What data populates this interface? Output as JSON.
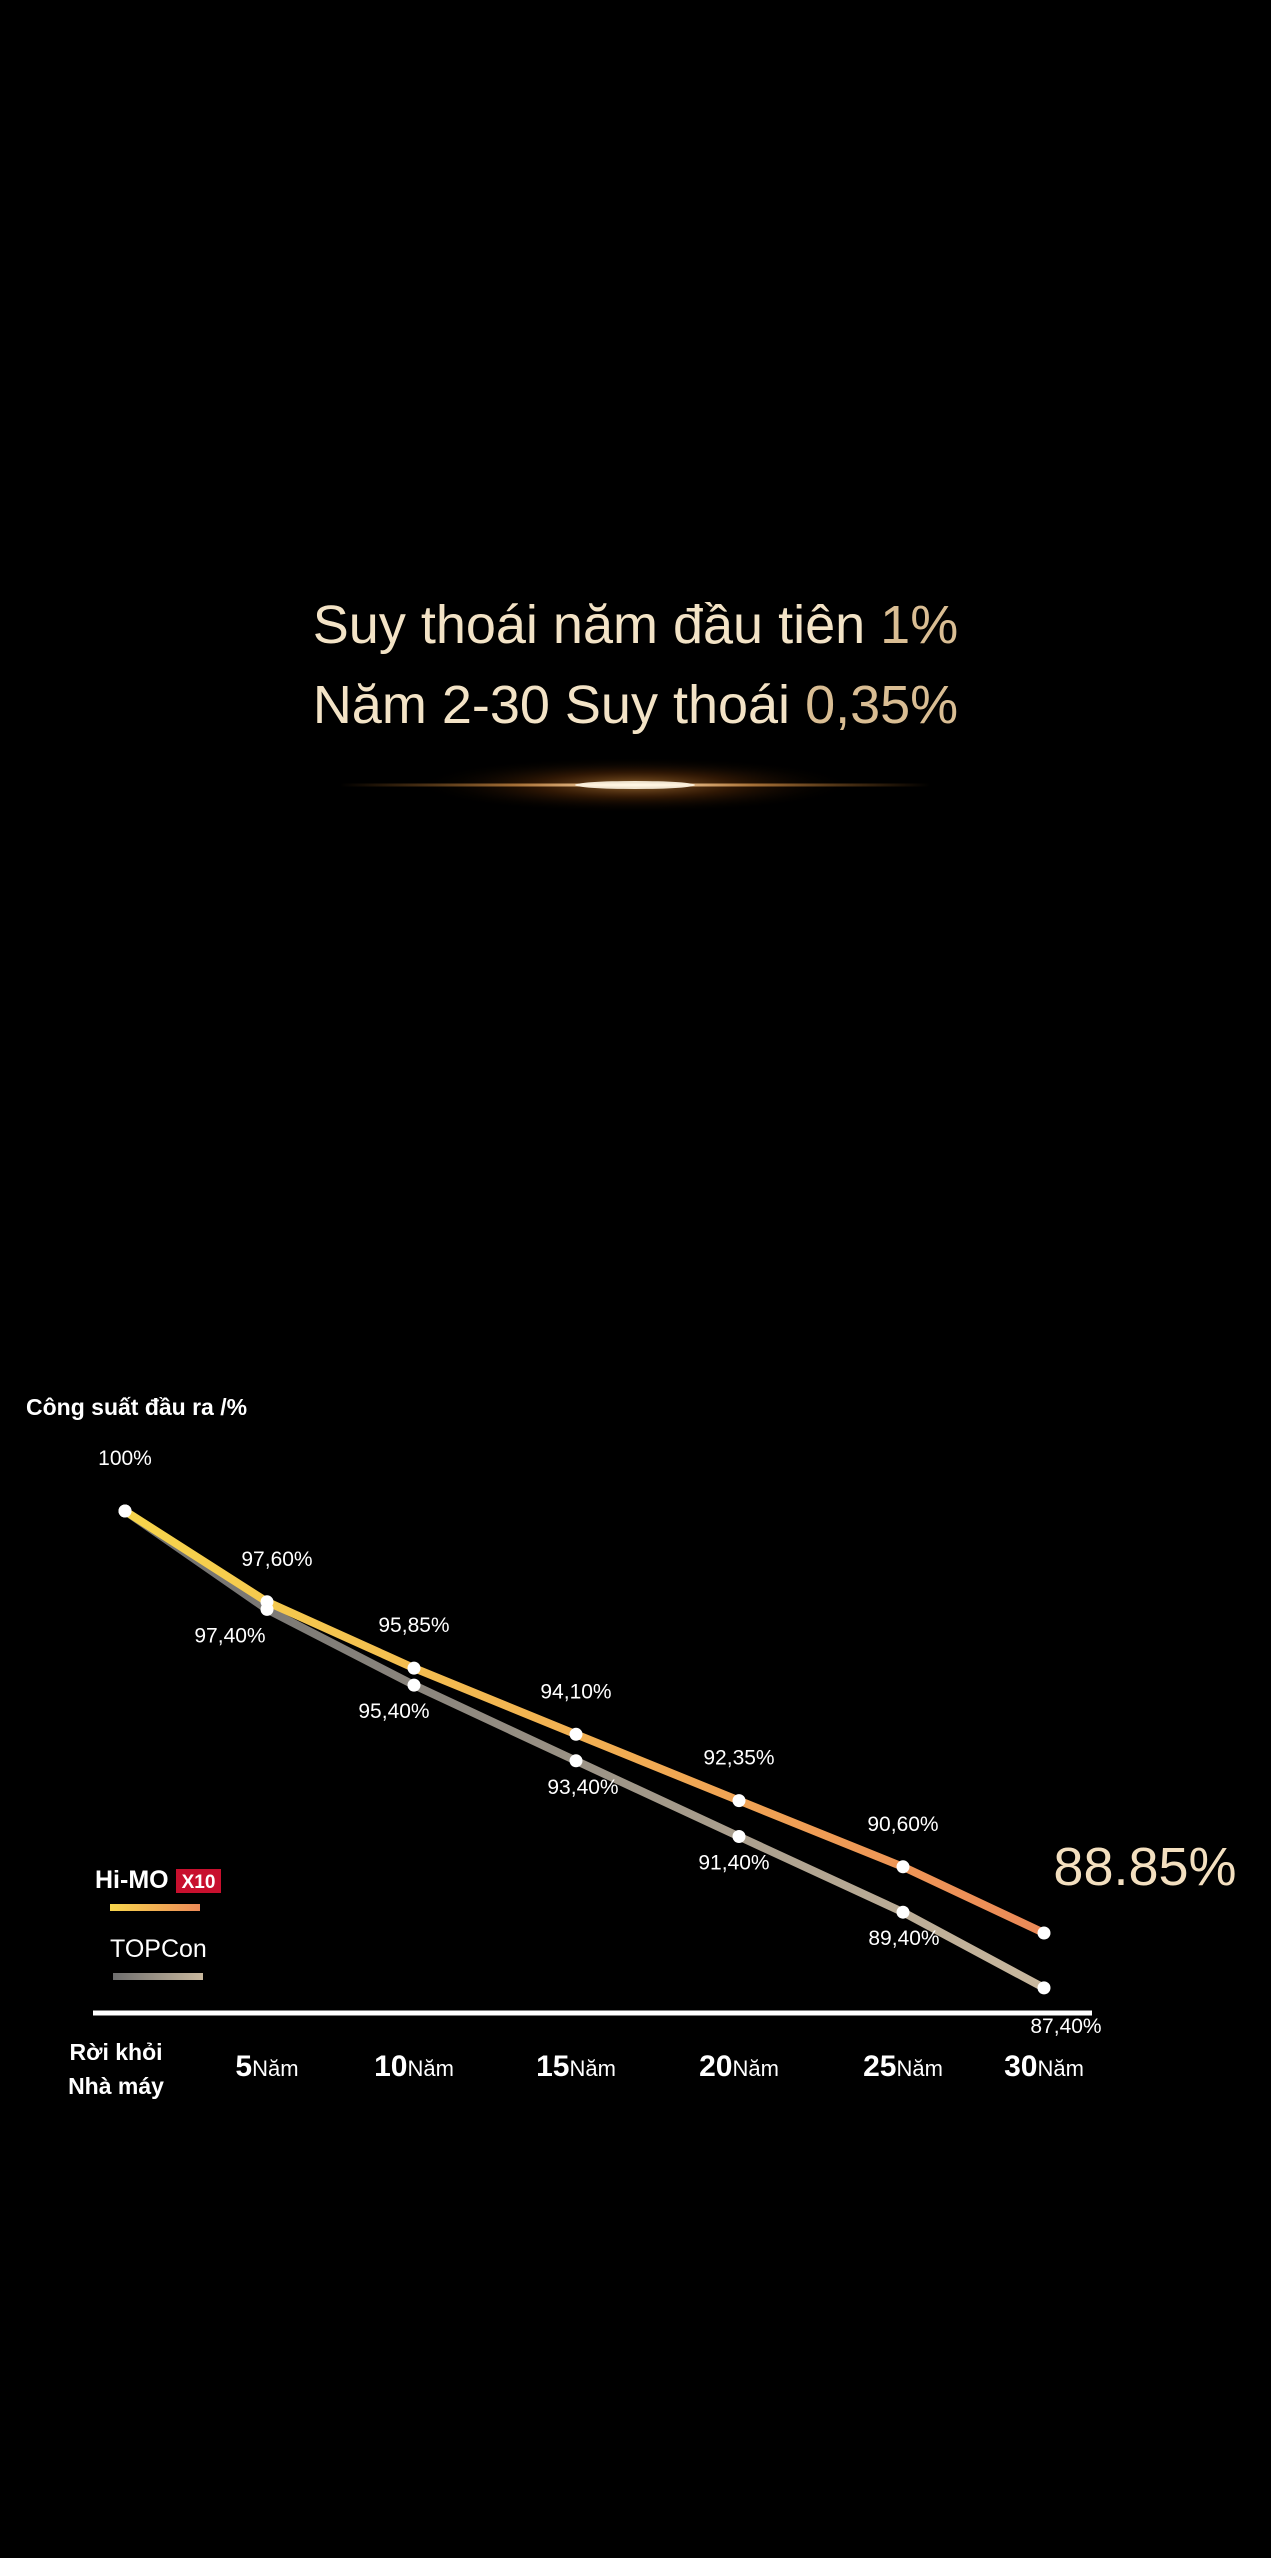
{
  "headline": {
    "line1_main": "Suy thoái năm đầu tiên ",
    "line1_highlight": "1%",
    "line2_main": "Năm 2-30 Suy thoái ",
    "line2_highlight": "0,35%"
  },
  "colors": {
    "background": "#000000",
    "headline_text": "#f3e3c6",
    "headline_highlight": "#d9bd93",
    "himo_start": "#f7d54c",
    "himo_end": "#ec8a58",
    "topcon_start": "#6e6e6e",
    "topcon_end": "#c9b89e",
    "callout": "#f3dfbf",
    "badge": "#c8102e"
  },
  "chart_data": {
    "type": "line",
    "ylabel": "Công suất đầu ra /%",
    "x": [
      "Rời khỏi Nhà máy",
      "5Năm",
      "10Năm",
      "15Năm",
      "20Năm",
      "25Năm",
      "30Năm"
    ],
    "x_ticks": [
      {
        "lines": [
          "Rời khỏi",
          "Nhà máy"
        ]
      },
      {
        "num": "5",
        "unit": "Năm"
      },
      {
        "num": "10",
        "unit": "Năm"
      },
      {
        "num": "15",
        "unit": "Năm"
      },
      {
        "num": "20",
        "unit": "Năm"
      },
      {
        "num": "25",
        "unit": "Năm"
      },
      {
        "num": "30",
        "unit": "Năm"
      }
    ],
    "series": [
      {
        "name": "Hi-MO X10",
        "legend_main": "Hi-MO",
        "legend_badge": "X10",
        "values": [
          100,
          97.6,
          95.85,
          94.1,
          92.35,
          90.6,
          88.85
        ],
        "labels": [
          "100%",
          "97,60%",
          "95,85%",
          "94,10%",
          "92,35%",
          "90,60%",
          "88.85%"
        ]
      },
      {
        "name": "TOPCon",
        "values": [
          100,
          97.4,
          95.4,
          93.4,
          91.4,
          89.4,
          87.4
        ],
        "labels": [
          "",
          "97,40%",
          "95,40%",
          "93,40%",
          "91,40%",
          "89,40%",
          "87,40%"
        ]
      }
    ],
    "ylim": [
      86.5,
      100
    ],
    "grid": false,
    "legend_position": "bottom-left"
  }
}
